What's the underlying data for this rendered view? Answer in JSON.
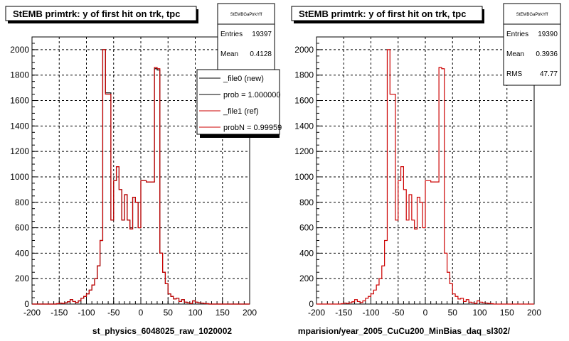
{
  "chart_data": [
    {
      "type": "histogram",
      "title": "StEMB primtrk: y of first hit on trk, tpc",
      "xlabel": "st_physics_6048025_raw_1020002",
      "xlim": [
        -200,
        200
      ],
      "ylim": [
        0,
        2100
      ],
      "grid": true,
      "x_ticks": [
        "-200",
        "-150",
        "-100",
        "-50",
        "0",
        "50",
        "100",
        "150",
        "200"
      ],
      "y_ticks": [
        "0",
        "200",
        "400",
        "600",
        "800",
        "1000",
        "1200",
        "1400",
        "1600",
        "1800",
        "2000"
      ],
      "bin_edges": [
        -200,
        -195,
        -190,
        -185,
        -180,
        -175,
        -170,
        -165,
        -160,
        -155,
        -150,
        -145,
        -140,
        -135,
        -130,
        -125,
        -120,
        -115,
        -110,
        -105,
        -100,
        -95,
        -90,
        -85,
        -80,
        -75,
        -70,
        -65,
        -60,
        -55,
        -50,
        -45,
        -40,
        -35,
        -30,
        -25,
        -20,
        -15,
        -10,
        -5,
        0,
        5,
        10,
        15,
        20,
        25,
        30,
        35,
        40,
        45,
        50,
        55,
        60,
        65,
        70,
        75,
        80,
        85,
        90,
        95,
        100,
        105,
        110,
        115,
        120,
        125,
        130,
        135,
        140,
        145,
        150,
        155,
        160,
        165,
        170,
        175,
        180,
        185,
        190,
        195,
        200
      ],
      "series": [
        {
          "name": "_file0 (new)",
          "color": "#000000",
          "values": [
            0,
            0,
            0,
            0,
            0,
            0,
            0,
            0,
            0,
            3,
            8,
            5,
            10,
            18,
            35,
            20,
            12,
            25,
            45,
            60,
            80,
            110,
            150,
            200,
            300,
            500,
            2000,
            1660,
            1660,
            660,
            970,
            1080,
            900,
            660,
            860,
            660,
            590,
            840,
            800,
            600,
            970,
            970,
            960,
            960,
            960,
            1850,
            1840,
            400,
            250,
            160,
            80,
            60,
            40,
            45,
            20,
            35,
            15,
            10,
            5,
            25,
            15,
            10,
            8,
            5,
            3,
            0,
            0,
            0,
            0,
            0,
            0,
            0,
            0,
            0,
            0,
            0,
            0,
            0,
            0,
            0
          ]
        },
        {
          "name": "_file1 (ref)",
          "color": "#cc0000",
          "values": [
            0,
            0,
            0,
            0,
            0,
            0,
            0,
            0,
            0,
            3,
            8,
            5,
            10,
            18,
            35,
            20,
            12,
            25,
            45,
            60,
            80,
            110,
            150,
            200,
            300,
            500,
            2000,
            1650,
            1650,
            660,
            970,
            1080,
            900,
            660,
            860,
            660,
            590,
            840,
            800,
            600,
            970,
            970,
            960,
            960,
            960,
            1860,
            1850,
            400,
            250,
            160,
            80,
            60,
            40,
            45,
            20,
            35,
            15,
            10,
            5,
            25,
            15,
            10,
            8,
            5,
            3,
            0,
            0,
            0,
            0,
            0,
            0,
            0,
            0,
            0,
            0,
            0,
            0,
            0,
            0,
            0
          ]
        }
      ],
      "stats": {
        "header": "StEMBGaPtrkYff",
        "rows": [
          {
            "label": "Entries",
            "value": "19397"
          },
          {
            "label": "Mean",
            "value": "0.4128"
          }
        ]
      },
      "legend": {
        "entries": [
          {
            "label": "_file0 (new)",
            "color": "#000000"
          },
          {
            "label": "prob = 1.000000",
            "color": "#000000"
          },
          {
            "label": "_file1 (ref)",
            "color": "#cc0000"
          },
          {
            "label": "probN = 0.99959",
            "color": "#cc0000"
          }
        ]
      }
    },
    {
      "type": "histogram",
      "title": "StEMB primtrk: y of first hit on trk, tpc",
      "xlabel": "mparision/year_2005_CuCu200_MinBias_daq_sl302/",
      "xlim": [
        -200,
        200
      ],
      "ylim": [
        0,
        2100
      ],
      "grid": true,
      "x_ticks": [
        "-200",
        "-150",
        "-100",
        "-50",
        "0",
        "50",
        "100",
        "150",
        "200"
      ],
      "y_ticks": [
        "0",
        "200",
        "400",
        "600",
        "800",
        "1000",
        "1200",
        "1400",
        "1600",
        "1800",
        "2000"
      ],
      "bin_edges": [
        -200,
        -195,
        -190,
        -185,
        -180,
        -175,
        -170,
        -165,
        -160,
        -155,
        -150,
        -145,
        -140,
        -135,
        -130,
        -125,
        -120,
        -115,
        -110,
        -105,
        -100,
        -95,
        -90,
        -85,
        -80,
        -75,
        -70,
        -65,
        -60,
        -55,
        -50,
        -45,
        -40,
        -35,
        -30,
        -25,
        -20,
        -15,
        -10,
        -5,
        0,
        5,
        10,
        15,
        20,
        25,
        30,
        35,
        40,
        45,
        50,
        55,
        60,
        65,
        70,
        75,
        80,
        85,
        90,
        95,
        100,
        105,
        110,
        115,
        120,
        125,
        130,
        135,
        140,
        145,
        150,
        155,
        160,
        165,
        170,
        175,
        180,
        185,
        190,
        195,
        200
      ],
      "series": [
        {
          "name": "",
          "color": "#cc0000",
          "values": [
            0,
            0,
            0,
            0,
            0,
            0,
            0,
            0,
            0,
            3,
            8,
            5,
            10,
            18,
            35,
            20,
            12,
            25,
            45,
            60,
            80,
            110,
            150,
            200,
            300,
            500,
            2000,
            1650,
            1650,
            660,
            970,
            1080,
            900,
            660,
            860,
            660,
            590,
            840,
            800,
            600,
            970,
            970,
            960,
            960,
            960,
            1860,
            1850,
            400,
            250,
            160,
            80,
            60,
            40,
            45,
            20,
            35,
            15,
            10,
            5,
            25,
            15,
            10,
            8,
            5,
            3,
            0,
            0,
            0,
            0,
            0,
            0,
            0,
            0,
            0,
            0,
            0,
            0,
            0,
            0,
            0
          ]
        }
      ],
      "stats": {
        "header": "StEMBGaPtrkYff",
        "rows": [
          {
            "label": "Entries",
            "value": "19390"
          },
          {
            "label": "Mean",
            "value": "0.3936"
          },
          {
            "label": "RMS",
            "value": "47.77"
          }
        ]
      }
    }
  ]
}
